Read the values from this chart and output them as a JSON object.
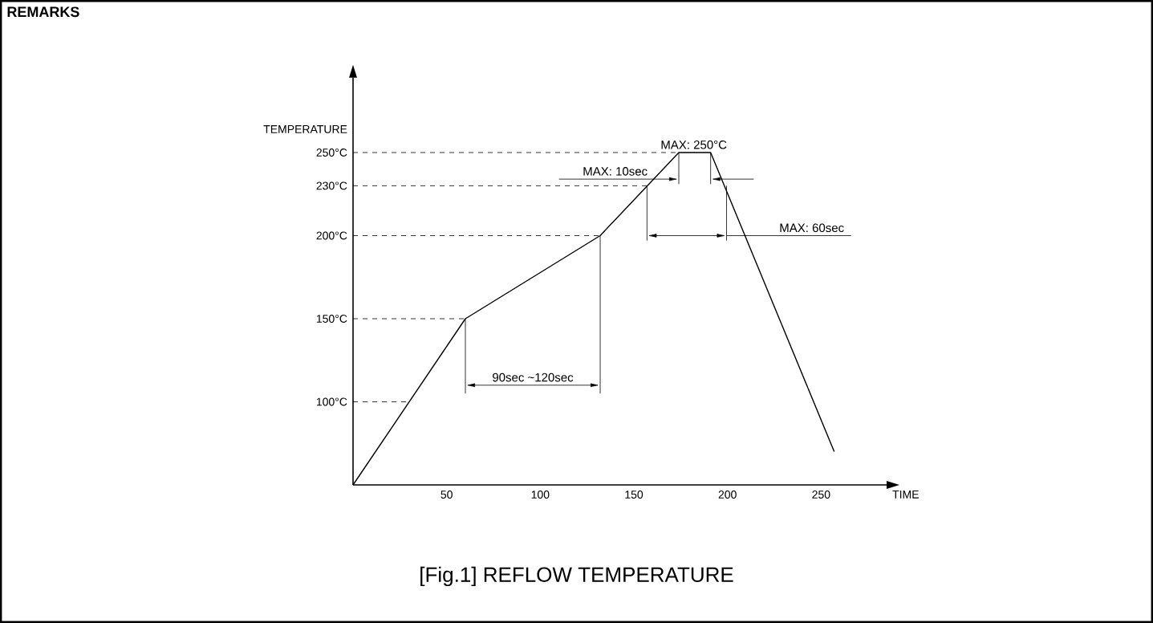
{
  "chart_data": {
    "type": "line",
    "title": "[Fig.1] REFLOW TEMPERATURE",
    "xlabel": "TIME",
    "ylabel": "TEMPERATURE",
    "x": [
      0,
      60,
      132,
      174,
      191,
      257
    ],
    "values": [
      50,
      150,
      200,
      250,
      250,
      70
    ],
    "color": "#000000",
    "marker": "none",
    "line_style": "solid",
    "xlim": [
      0,
      285
    ],
    "ylim": [
      50,
      295
    ],
    "xticks": [
      50,
      100,
      150,
      200,
      250
    ],
    "yticks": [
      {
        "value": 100,
        "label": "100°C"
      },
      {
        "value": 150,
        "label": "150°C"
      },
      {
        "value": 200,
        "label": "200°C"
      },
      {
        "value": 230,
        "label": "230°C"
      },
      {
        "value": 250,
        "label": "250°C"
      }
    ],
    "ref_lines": [
      {
        "axis": "y",
        "value": 100,
        "line_style": "dashed"
      },
      {
        "axis": "y",
        "value": 150,
        "line_style": "dashed"
      },
      {
        "axis": "y",
        "value": 200,
        "line_style": "dashed"
      },
      {
        "axis": "y",
        "value": 230,
        "line_style": "dashed"
      },
      {
        "axis": "y",
        "value": 250,
        "line_style": "dashed"
      }
    ],
    "annotations": [
      "REMARKS",
      {
        "text": "MAX: 250°C",
        "x": 182,
        "y": 250
      },
      "MAX: 10sec",
      "MAX: 60sec",
      "90sec ~120sec"
    ]
  }
}
